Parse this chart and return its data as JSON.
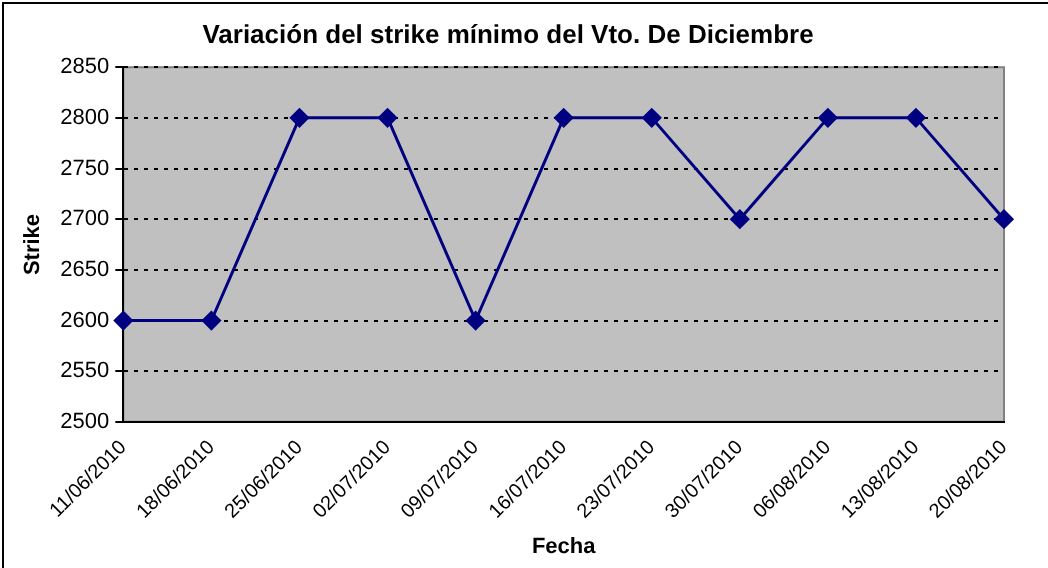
{
  "chart_data": {
    "type": "line",
    "title": "Variación del strike mínimo del Vto. De Diciembre",
    "xlabel": "Fecha",
    "ylabel": "Strike",
    "categories": [
      "11/06/2010",
      "18/06/2010",
      "25/06/2010",
      "02/07/2010",
      "09/07/2010",
      "16/07/2010",
      "23/07/2010",
      "30/07/2010",
      "06/08/2010",
      "13/08/2010",
      "20/08/2010"
    ],
    "series": [
      {
        "color": "#000080",
        "values": [
          2600,
          2600,
          2800,
          2800,
          2600,
          2800,
          2800,
          2700,
          2800,
          2800,
          2700
        ]
      }
    ],
    "ylim": [
      2500,
      2850
    ],
    "yticks": [
      2500,
      2550,
      2600,
      2650,
      2700,
      2750,
      2800,
      2850
    ],
    "grid": "y",
    "marker": "diamond",
    "line_style": "solid"
  }
}
